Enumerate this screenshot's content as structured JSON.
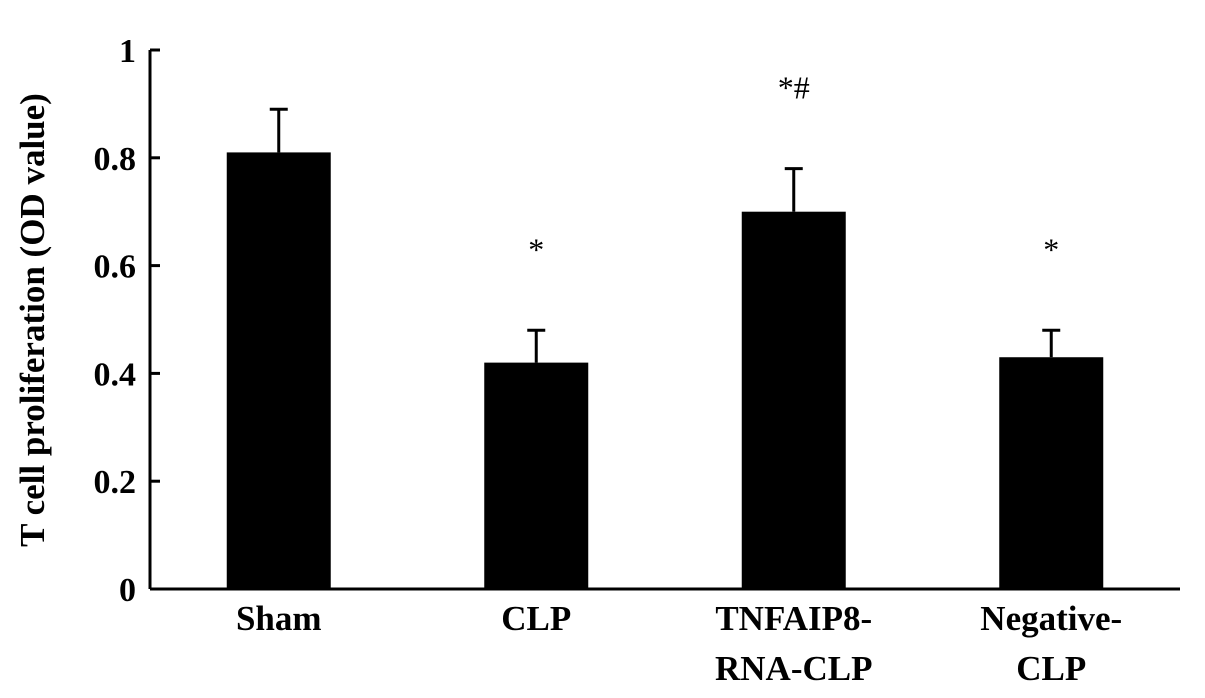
{
  "chart_data": {
    "type": "bar",
    "categories": [
      [
        "Sham"
      ],
      [
        "CLP"
      ],
      [
        "TNFAIP8-",
        "RNA-CLP"
      ],
      [
        "Negative-",
        "CLP"
      ]
    ],
    "values": [
      0.81,
      0.42,
      0.7,
      0.43
    ],
    "errors": [
      0.08,
      0.06,
      0.08,
      0.05
    ],
    "annotations": [
      "",
      "*",
      "*#",
      "*"
    ],
    "ylabel": "T cell proliferation (OD value)",
    "xlabel": "",
    "ylim": [
      0,
      1
    ],
    "yticks": [
      0,
      0.2,
      0.4,
      0.6,
      0.8,
      1
    ],
    "ytick_labels": [
      "0",
      "0.2",
      "0.4",
      "0.6",
      "0.8",
      "1"
    ],
    "bar_color": "#000000",
    "grid": false,
    "legend": "none"
  }
}
